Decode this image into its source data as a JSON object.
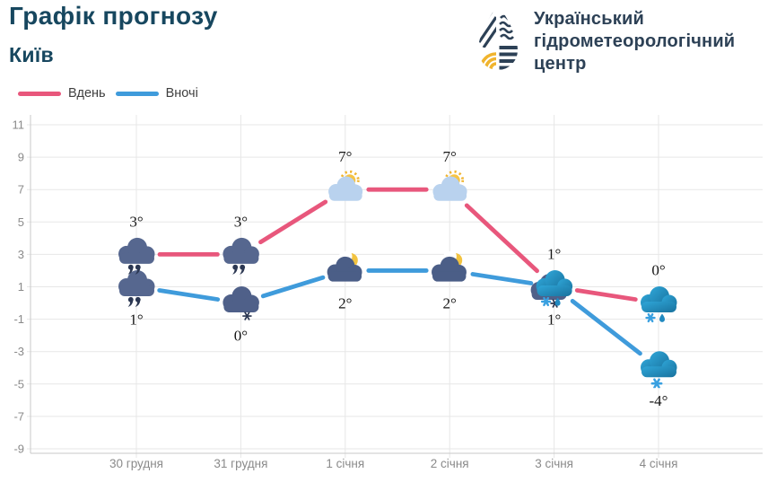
{
  "header": {
    "title": "Графік прогнозу",
    "subtitle": "Київ",
    "logo": {
      "icon": "uhmc-water-drop-logo",
      "lines": [
        "Український",
        "гідрометеорологічний",
        "центр"
      ]
    }
  },
  "legend": {
    "items": [
      {
        "key": "day",
        "label": "Вдень",
        "color": "#e8577c"
      },
      {
        "key": "night",
        "label": "Вночі",
        "color": "#3f9bdb"
      }
    ]
  },
  "colors": {
    "title_text": "#17475f",
    "subtitle_text": "#17475f",
    "logo_text": "#2d4156",
    "logo_yellow": "#f0b42e",
    "grid": "#e7e7e7",
    "axis": "#c9c9c9",
    "tick_text": "#8a8a8a",
    "point_label_text": "#161616",
    "day_line": "#e8577c",
    "night_line": "#3f9bdb"
  },
  "chart_data": {
    "type": "line",
    "title": "Графік прогнозу",
    "subtitle": "Київ",
    "categories": [
      "30 грудня",
      "31 грудня",
      "1 січня",
      "2 січня",
      "3 січня",
      "4 січня"
    ],
    "series": [
      {
        "key": "day",
        "name": "Вдень",
        "color": "#e8577c",
        "values": [
          3,
          3,
          7,
          7,
          1,
          0
        ],
        "icons": [
          "cloud-rain-dark",
          "cloud-rain-dark",
          "sun-behind-cloud",
          "sun-behind-cloud",
          "cloud-snow-rain-blue",
          "cloud-snow-rain-blue"
        ],
        "label_position": "above"
      },
      {
        "key": "night",
        "name": "Вночі",
        "color": "#3f9bdb",
        "values": [
          1,
          0,
          2,
          2,
          1,
          -4
        ],
        "icons": [
          "cloud-rain-dark",
          "cloud-snow-dark",
          "moon-behind-cloud",
          "moon-behind-cloud",
          "cloud-snow-dark",
          "cloud-snow-blue"
        ],
        "label_position": "below"
      }
    ],
    "unit": "°",
    "ylim": [
      -9,
      11
    ],
    "yticks": [
      11,
      9,
      7,
      5,
      3,
      1,
      -1,
      -3,
      -5,
      -7,
      -9
    ],
    "grid": true,
    "legend_position": "top-left",
    "xlabel": "",
    "ylabel": ""
  }
}
